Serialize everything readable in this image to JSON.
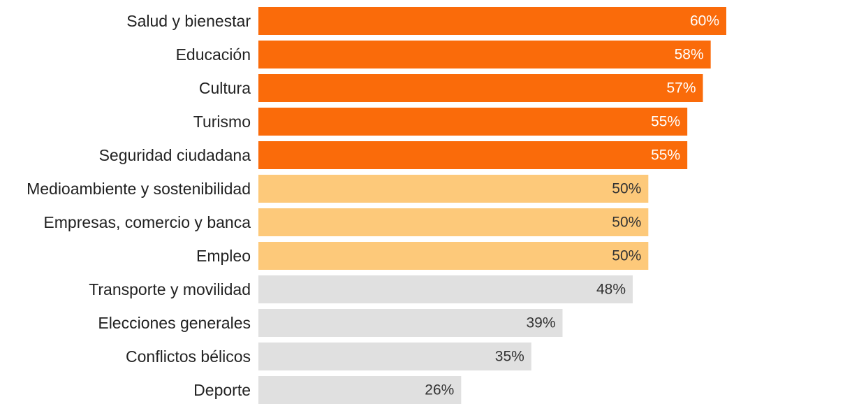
{
  "chart_data": {
    "type": "bar",
    "orientation": "horizontal",
    "categories": [
      "Salud y bienestar",
      "Educación",
      "Cultura",
      "Turismo",
      "Seguridad ciudadana",
      "Medioambiente y sostenibilidad",
      "Empresas, comercio y banca",
      "Empleo",
      "Transporte y movilidad",
      "Elecciones generales",
      "Conflictos bélicos",
      "Deporte"
    ],
    "values": [
      60,
      58,
      57,
      55,
      55,
      50,
      50,
      50,
      48,
      39,
      35,
      26
    ],
    "value_labels": [
      "60%",
      "58%",
      "57%",
      "55%",
      "55%",
      "50%",
      "50%",
      "50%",
      "48%",
      "39%",
      "35%",
      "26%"
    ],
    "groups": [
      "high",
      "high",
      "high",
      "high",
      "high",
      "mid",
      "mid",
      "mid",
      "low",
      "low",
      "low",
      "low"
    ],
    "xlim": [
      0,
      60
    ],
    "grid": false,
    "legend": "none",
    "title": "",
    "xlabel": "",
    "ylabel": ""
  },
  "colors": {
    "high": "#fa6b0a",
    "mid": "#fdc97a",
    "low": "#e0e0e0",
    "label_on_high": "#ffffff",
    "label_on_mid": "#333333",
    "label_on_low": "#333333",
    "category_text": "#222222"
  }
}
